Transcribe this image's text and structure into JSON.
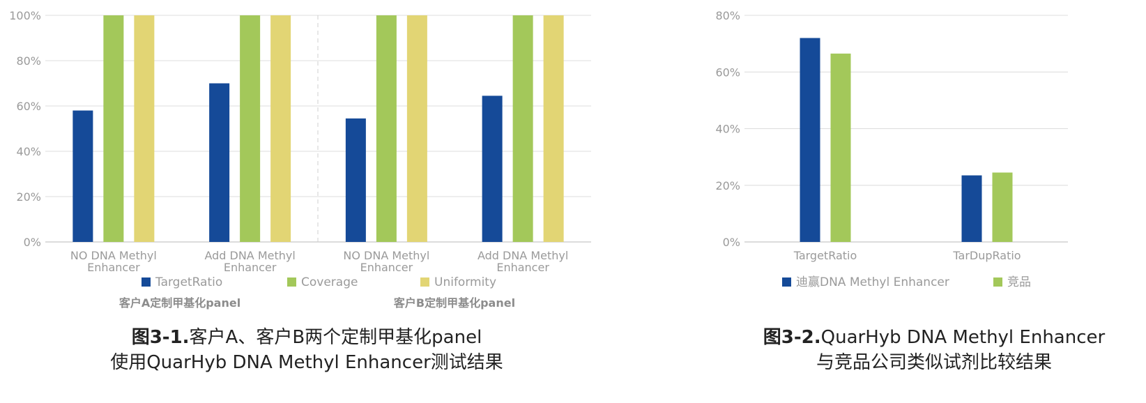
{
  "chart_data": [
    {
      "type": "bar",
      "categories": [
        "NO DNA Methyl\nEnhancer",
        "Add DNA Methyl\nEnhancer",
        "NO DNA Methyl\nEnhancer",
        "Add DNA Methyl\nEnhancer"
      ],
      "series": [
        {
          "name": "TargetRatio",
          "values": [
            0.58,
            0.7,
            0.545,
            0.645
          ],
          "color": "#154a98"
        },
        {
          "name": "Coverage",
          "values": [
            1.0,
            1.0,
            1.0,
            1.0
          ],
          "color": "#a3c85a"
        },
        {
          "name": "Uniformity",
          "values": [
            1.0,
            1.0,
            1.0,
            1.0
          ],
          "color": "#e2d574"
        }
      ],
      "ylim": [
        0,
        1.0
      ],
      "yticks": [
        "0%",
        "20%",
        "40%",
        "60%",
        "80%",
        "100%"
      ],
      "groups": [
        "客户A定制甲基化panel",
        "客户B定制甲基化panel"
      ],
      "legend": "bottom",
      "grid": true,
      "caption": {
        "bold": "图3-1.",
        "line1": "客户A、客户B两个定制甲基化panel",
        "line2": "使用QuarHyb DNA Methyl Enhancer测试结果"
      }
    },
    {
      "type": "bar",
      "categories": [
        "TargetRatio",
        "TarDupRatio"
      ],
      "series": [
        {
          "name": "迪赢DNA Methyl Enhancer",
          "values": [
            0.72,
            0.235
          ],
          "color": "#154a98"
        },
        {
          "name": "竞品",
          "values": [
            0.665,
            0.245
          ],
          "color": "#a3c85a"
        }
      ],
      "ylim": [
        0,
        0.8
      ],
      "yticks": [
        "0%",
        "20%",
        "40%",
        "60%",
        "80%"
      ],
      "legend": "bottom",
      "grid": true,
      "caption": {
        "bold": "图3-2.",
        "line1": "QuarHyb DNA Methyl Enhancer",
        "line2": "与竞品公司类似试剂比较结果"
      }
    }
  ]
}
